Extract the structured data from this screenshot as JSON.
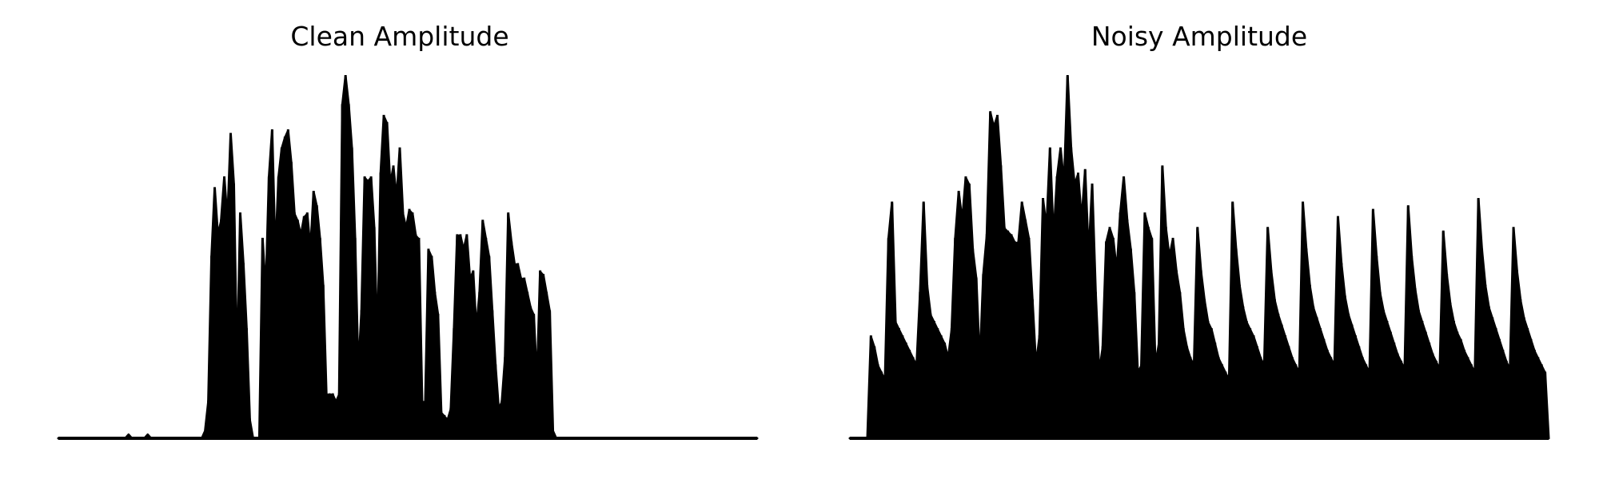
{
  "colors": {
    "background": "#ffffff",
    "line": "#000000"
  },
  "chart_data": [
    {
      "type": "line",
      "title": "Clean Amplitude",
      "axes_visible": false,
      "grid": false,
      "ylim": [
        0,
        1
      ],
      "series": [
        {
          "envelope": [
            0.0,
            0.0,
            0.0,
            0.0,
            0.0,
            0.0,
            0.0,
            0.0,
            0.0,
            0.0,
            0.0,
            0.0,
            0.0,
            0.0,
            0.0,
            0.0,
            0.0,
            0.0,
            0.0,
            0.0,
            0.0,
            0.0,
            0.01,
            0.0,
            0.0,
            0.0,
            0.0,
            0.0,
            0.01,
            0.0,
            0.0,
            0.0,
            0.0,
            0.0,
            0.0,
            0.0,
            0.0,
            0.0,
            0.0,
            0.0,
            0.0,
            0.0,
            0.0,
            0.0,
            0.0,
            0.0,
            0.02,
            0.1,
            0.5,
            0.69,
            0.56,
            0.6,
            0.72,
            0.6,
            0.84,
            0.7,
            0.18,
            0.62,
            0.48,
            0.3,
            0.05,
            0.0,
            0.0,
            0.0,
            0.55,
            0.4,
            0.72,
            0.85,
            0.5,
            0.72,
            0.8,
            0.83,
            0.85,
            0.76,
            0.62,
            0.6,
            0.56,
            0.61,
            0.62,
            0.52,
            0.68,
            0.64,
            0.55,
            0.42,
            0.12,
            0.12,
            0.12,
            0.1,
            0.12,
            0.92,
            1.0,
            0.92,
            0.8,
            0.55,
            0.18,
            0.35,
            0.72,
            0.71,
            0.72,
            0.58,
            0.25,
            0.73,
            0.89,
            0.87,
            0.7,
            0.75,
            0.66,
            0.8,
            0.62,
            0.58,
            0.63,
            0.62,
            0.56,
            0.55,
            0.1,
            0.1,
            0.52,
            0.5,
            0.4,
            0.34,
            0.07,
            0.06,
            0.05,
            0.08,
            0.3,
            0.56,
            0.56,
            0.52,
            0.56,
            0.44,
            0.46,
            0.3,
            0.4,
            0.6,
            0.55,
            0.5,
            0.35,
            0.2,
            0.08,
            0.1,
            0.22,
            0.62,
            0.54,
            0.48,
            0.48,
            0.44,
            0.44,
            0.4,
            0.36,
            0.34,
            0.15,
            0.46,
            0.45,
            0.4,
            0.35,
            0.02,
            0.0,
            0.0,
            0.0,
            0.0,
            0.0,
            0.0,
            0.0,
            0.0,
            0.0,
            0.0,
            0.0,
            0.0,
            0.0,
            0.0,
            0.0,
            0.0,
            0.0,
            0.0,
            0.0,
            0.0,
            0.0,
            0.0,
            0.0,
            0.0,
            0.0,
            0.0,
            0.0,
            0.0,
            0.0,
            0.0,
            0.0,
            0.0,
            0.0,
            0.0,
            0.0,
            0.0,
            0.0,
            0.0,
            0.0,
            0.0,
            0.0,
            0.0,
            0.0,
            0.0,
            0.0,
            0.0,
            0.0,
            0.0,
            0.0,
            0.0,
            0.0,
            0.0,
            0.0,
            0.0,
            0.0,
            0.0,
            0.0,
            0.0,
            0.0,
            0.0,
            0.0,
            0.0,
            0.0,
            0.0
          ]
        }
      ]
    },
    {
      "type": "line",
      "title": "Noisy Amplitude",
      "axes_visible": false,
      "grid": false,
      "ylim": [
        0,
        1
      ],
      "series": [
        {
          "envelope": [
            0.0,
            0.0,
            0.0,
            0.0,
            0.0,
            0.0,
            0.28,
            0.25,
            0.2,
            0.18,
            0.16,
            0.55,
            0.65,
            0.32,
            0.3,
            0.28,
            0.26,
            0.24,
            0.22,
            0.2,
            0.4,
            0.65,
            0.42,
            0.34,
            0.32,
            0.3,
            0.28,
            0.26,
            0.22,
            0.3,
            0.55,
            0.68,
            0.6,
            0.72,
            0.7,
            0.52,
            0.44,
            0.2,
            0.45,
            0.56,
            0.9,
            0.86,
            0.89,
            0.75,
            0.58,
            0.57,
            0.56,
            0.54,
            0.54,
            0.65,
            0.6,
            0.55,
            0.38,
            0.2,
            0.28,
            0.66,
            0.58,
            0.8,
            0.55,
            0.72,
            0.8,
            0.7,
            1.0,
            0.8,
            0.7,
            0.73,
            0.6,
            0.74,
            0.5,
            0.7,
            0.4,
            0.18,
            0.25,
            0.54,
            0.58,
            0.55,
            0.46,
            0.62,
            0.72,
            0.6,
            0.52,
            0.4,
            0.18,
            0.2,
            0.62,
            0.58,
            0.55,
            0.2,
            0.26,
            0.75,
            0.58,
            0.5,
            0.55,
            0.46,
            0.4,
            0.3,
            0.25,
            0.22,
            0.2,
            0.58,
            0.46,
            0.38,
            0.32,
            0.3,
            0.26,
            0.22,
            0.2,
            0.18,
            0.16,
            0.65,
            0.52,
            0.42,
            0.36,
            0.32,
            0.3,
            0.28,
            0.25,
            0.22,
            0.2,
            0.58,
            0.46,
            0.38,
            0.34,
            0.31,
            0.28,
            0.25,
            0.22,
            0.2,
            0.18,
            0.65,
            0.52,
            0.42,
            0.36,
            0.33,
            0.3,
            0.27,
            0.24,
            0.22,
            0.2,
            0.61,
            0.48,
            0.39,
            0.34,
            0.31,
            0.28,
            0.25,
            0.22,
            0.2,
            0.18,
            0.63,
            0.5,
            0.4,
            0.35,
            0.32,
            0.29,
            0.26,
            0.23,
            0.21,
            0.19,
            0.64,
            0.5,
            0.41,
            0.35,
            0.32,
            0.29,
            0.26,
            0.23,
            0.21,
            0.19,
            0.57,
            0.45,
            0.37,
            0.32,
            0.29,
            0.27,
            0.24,
            0.22,
            0.2,
            0.18,
            0.66,
            0.52,
            0.42,
            0.36,
            0.33,
            0.3,
            0.27,
            0.24,
            0.21,
            0.19,
            0.58,
            0.46,
            0.38,
            0.33,
            0.3,
            0.27,
            0.24,
            0.22,
            0.2,
            0.18,
            0.0
          ]
        }
      ]
    }
  ]
}
